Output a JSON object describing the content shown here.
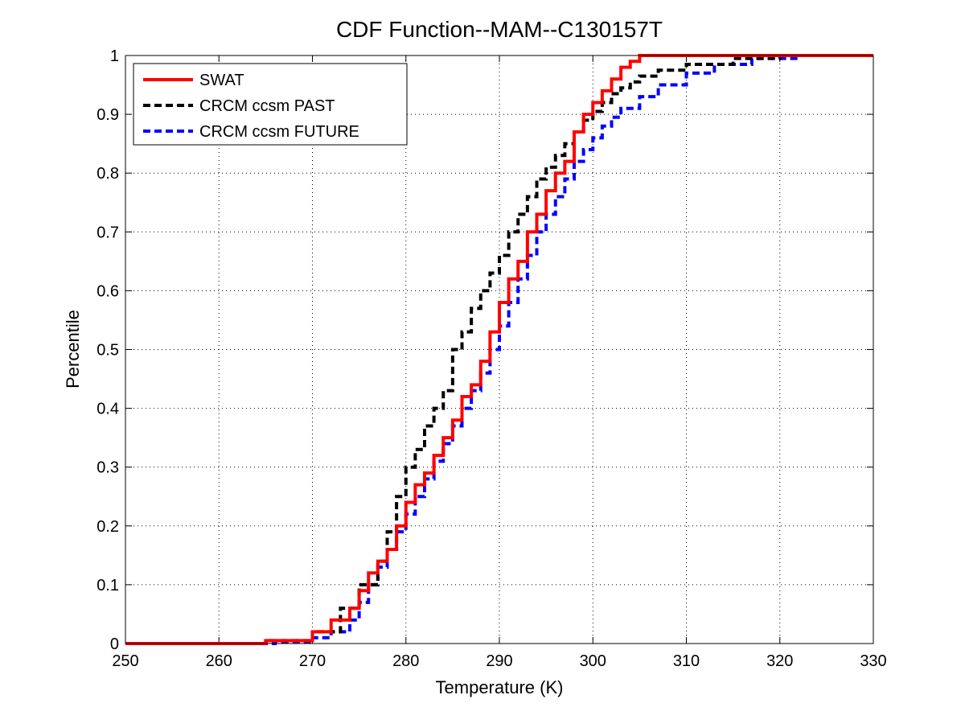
{
  "chart_data": {
    "type": "line",
    "title": "CDF Function--MAM--C130157T",
    "xlabel": "Temperature (K)",
    "ylabel": "Percentile",
    "xlim": [
      250,
      330
    ],
    "ylim": [
      0,
      1
    ],
    "xticks": [
      "250",
      "260",
      "270",
      "280",
      "290",
      "300",
      "310",
      "320",
      "330"
    ],
    "yticks": [
      "0",
      "0.1",
      "0.2",
      "0.3",
      "0.4",
      "0.5",
      "0.6",
      "0.7",
      "0.8",
      "0.9",
      "1"
    ],
    "grid": true,
    "legend_position": "top-left",
    "series": [
      {
        "name": "SWAT",
        "color": "#ff0000",
        "style": "solid",
        "x": [
          250,
          265,
          270,
          272,
          274,
          275,
          276,
          277,
          278,
          279,
          280,
          281,
          282,
          283,
          284,
          285,
          286,
          287,
          288,
          289,
          290,
          291,
          292,
          293,
          294,
          295,
          296,
          297,
          298,
          299,
          300,
          301,
          302,
          303,
          304,
          305,
          330
        ],
        "y": [
          0,
          0.005,
          0.02,
          0.04,
          0.06,
          0.09,
          0.12,
          0.14,
          0.16,
          0.2,
          0.24,
          0.27,
          0.29,
          0.32,
          0.35,
          0.38,
          0.42,
          0.44,
          0.48,
          0.53,
          0.58,
          0.62,
          0.65,
          0.7,
          0.73,
          0.77,
          0.8,
          0.82,
          0.87,
          0.9,
          0.92,
          0.94,
          0.96,
          0.98,
          0.99,
          1.0,
          1.0
        ]
      },
      {
        "name": "CRCM ccsm PAST",
        "color": "#000000",
        "style": "dashed",
        "x": [
          250,
          265,
          270,
          273,
          275,
          277,
          278,
          279,
          280,
          281,
          282,
          283,
          284,
          285,
          286,
          287,
          288,
          289,
          290,
          291,
          292,
          293,
          294,
          295,
          296,
          297,
          298,
          299,
          300,
          301,
          302,
          303,
          304,
          305,
          307,
          310,
          315,
          320,
          330
        ],
        "y": [
          0,
          0.005,
          0.02,
          0.06,
          0.1,
          0.14,
          0.19,
          0.25,
          0.3,
          0.33,
          0.37,
          0.4,
          0.43,
          0.5,
          0.53,
          0.57,
          0.6,
          0.63,
          0.66,
          0.7,
          0.73,
          0.76,
          0.79,
          0.81,
          0.83,
          0.85,
          0.87,
          0.89,
          0.905,
          0.92,
          0.935,
          0.945,
          0.955,
          0.965,
          0.975,
          0.985,
          0.995,
          1.0,
          1.0
        ]
      },
      {
        "name": "CRCM ccsm FUTURE",
        "color": "#0000ff",
        "style": "dashed",
        "x": [
          250,
          266,
          270,
          272,
          274,
          275,
          276,
          277,
          278,
          279,
          280,
          281,
          282,
          283,
          284,
          285,
          286,
          287,
          288,
          289,
          290,
          291,
          292,
          293,
          294,
          295,
          296,
          297,
          298,
          299,
          300,
          301,
          302,
          303,
          305,
          307,
          310,
          313,
          317,
          322,
          330
        ],
        "y": [
          0,
          0.003,
          0.01,
          0.02,
          0.04,
          0.07,
          0.1,
          0.13,
          0.16,
          0.19,
          0.22,
          0.25,
          0.28,
          0.31,
          0.34,
          0.37,
          0.4,
          0.43,
          0.46,
          0.5,
          0.54,
          0.58,
          0.62,
          0.66,
          0.7,
          0.73,
          0.76,
          0.79,
          0.82,
          0.84,
          0.86,
          0.88,
          0.895,
          0.91,
          0.93,
          0.95,
          0.97,
          0.985,
          0.995,
          1.0,
          1.0
        ]
      }
    ]
  }
}
